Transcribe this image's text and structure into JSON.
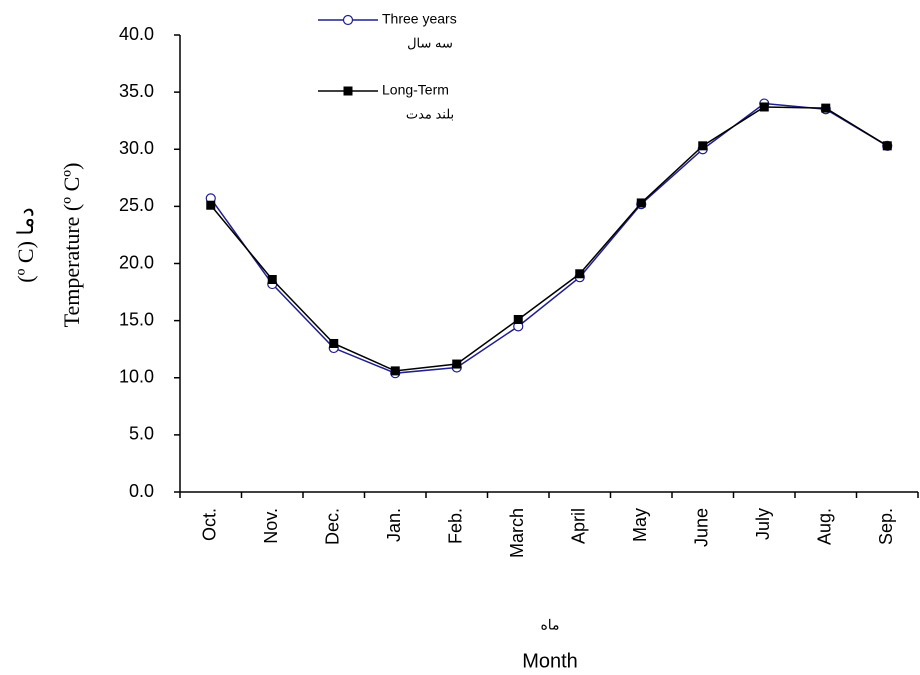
{
  "chart_data": {
    "type": "line",
    "y_label": "Temperature (º Cº)",
    "y_label_fa": "(º C) دما",
    "x_label": "Month",
    "x_label_fa": "ماه",
    "categories": [
      "Oct.",
      "Nov.",
      "Dec.",
      "Jan.",
      "Feb.",
      "March",
      "April",
      "May",
      "June",
      "July",
      "Aug.",
      "Sep."
    ],
    "series": [
      {
        "name": "Three years",
        "name_fa": "سه سال",
        "color": "#1f1f8f",
        "marker": "open-circle",
        "values": [
          25.7,
          18.2,
          12.6,
          10.4,
          10.9,
          14.5,
          18.8,
          25.2,
          30.0,
          34.0,
          33.5,
          30.3
        ]
      },
      {
        "name": "Long-Term",
        "name_fa": "بلند مدت",
        "color": "#000000",
        "marker": "filled-square",
        "values": [
          25.1,
          18.6,
          13.0,
          10.6,
          11.2,
          15.1,
          19.1,
          25.3,
          30.3,
          33.7,
          33.6,
          30.3
        ]
      }
    ],
    "ylim": [
      0,
      40
    ],
    "yticks": [
      {
        "value": 0,
        "label": "0.0"
      },
      {
        "value": 5,
        "label": "5.0"
      },
      {
        "value": 10,
        "label": "10.0"
      },
      {
        "value": 15,
        "label": "15.0"
      },
      {
        "value": 20,
        "label": "20.0"
      },
      {
        "value": 25,
        "label": "25.0"
      },
      {
        "value": 30,
        "label": "30.0"
      },
      {
        "value": 35,
        "label": "35.0"
      },
      {
        "value": 40,
        "label": "40.0"
      }
    ]
  }
}
